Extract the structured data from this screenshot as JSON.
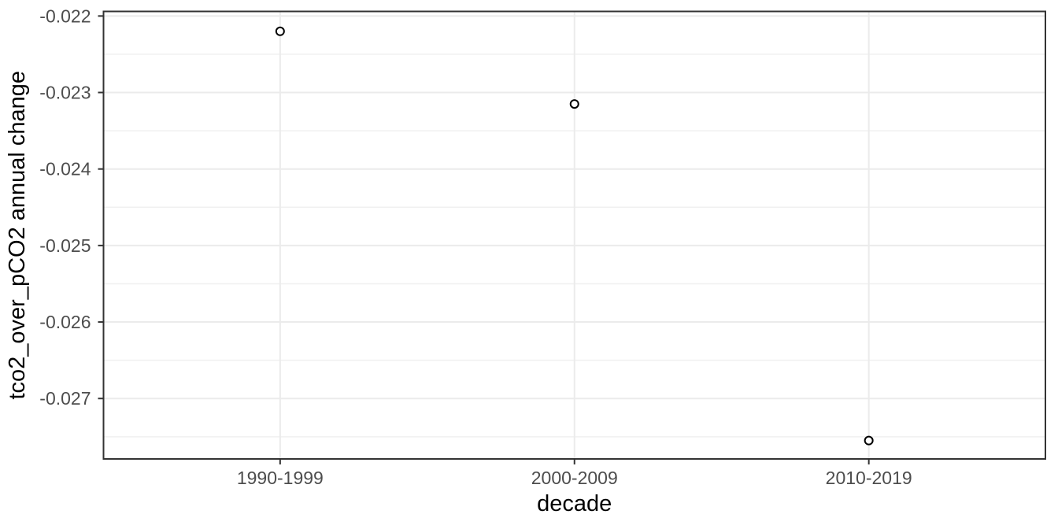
{
  "chart_data": {
    "type": "scatter",
    "title": "",
    "xlabel": "decade",
    "ylabel": "tco2_over_pCO2 annual change",
    "categories": [
      "1990-1999",
      "2000-2009",
      "2010-2019"
    ],
    "values": [
      -0.0222,
      -0.02315,
      -0.02755
    ],
    "ylim": [
      -0.02779,
      -0.02194
    ],
    "y_major_ticks": [
      -0.022,
      -0.023,
      -0.024,
      -0.025,
      -0.026,
      -0.027
    ],
    "y_tick_labels": [
      "-0.022",
      "-0.023",
      "-0.024",
      "-0.025",
      "-0.026",
      "-0.027"
    ],
    "y_minor_ticks": [
      -0.0225,
      -0.0235,
      -0.0245,
      -0.0255,
      -0.0265,
      -0.0275
    ],
    "grid": true,
    "legend_position": "none",
    "theme": {
      "background": "#ffffff",
      "panel_background": "#ffffff",
      "panel_border_color": "#333333",
      "grid_major_color": "#ebebeb",
      "grid_minor_color": "#f0f0f0",
      "axis_tick_color": "#333333",
      "tick_label_color": "#4d4d4d",
      "axis_title_color": "#000000",
      "point_stroke_color": "#000000",
      "point_fill_color": "#ffffff"
    }
  }
}
